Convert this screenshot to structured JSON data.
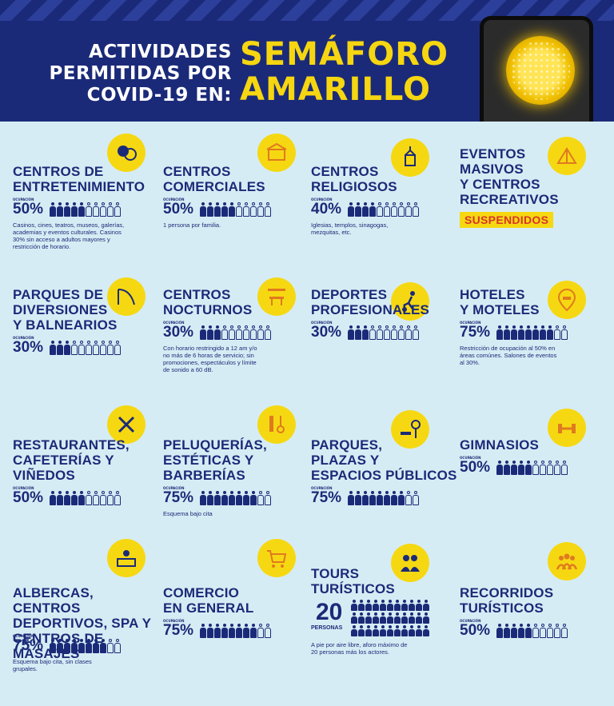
{
  "header": {
    "left_lines": [
      "ACTIVIDADES",
      "PERMITIDAS POR",
      "COVID-19 EN:"
    ],
    "right_lines": [
      "SEMÁFORO",
      "AMARILLO"
    ],
    "colors": {
      "navy": "#1b2a78",
      "yellow": "#f5d611",
      "bg": "#d6ecf4"
    }
  },
  "occupancy_label": "OCUPACIÓN",
  "cells": [
    {
      "title": "CENTROS DE\nENTRETENIMIENTO",
      "percent": "50%",
      "filled": 5,
      "note": "Casinos, cines, teatros, museos, galerías,\nacademias y eventos culturales. Casinos\n30% sin acceso a adultos mayores y\nrestricción de horario.",
      "icon": "masks-icon"
    },
    {
      "title": "CENTROS\nCOMERCIALES",
      "percent": "50%",
      "filled": 5,
      "note": "1 persona por familia.",
      "icon": "mall-icon"
    },
    {
      "title": "CENTROS\nRELIGIOSOS",
      "percent": "40%",
      "filled": 4,
      "note": "Iglesias, templos, sinagogas,\nmezquitas, etc.",
      "icon": "church-icon"
    },
    {
      "title": "EVENTOS\nMASIVOS\nY CENTROS\nRECREATIVOS",
      "status": "SUSPENDIDOS",
      "icon": "tent-icon"
    },
    {
      "title": "PARQUES DE\nDIVERSIONES\nY BALNEARIOS",
      "percent": "30%",
      "filled": 3,
      "note": "",
      "icon": "slide-icon"
    },
    {
      "title": "CENTROS\nNOCTURNOS",
      "percent": "30%",
      "filled": 3,
      "note": "Con horario restringido a 12 am y/o\nno más de 6 horas de servicio; sin\npromociones, espectáculos y límite\nde sonido a 60 dB.",
      "icon": "bar-icon"
    },
    {
      "title": "DEPORTES\nPROFESIONALES",
      "percent": "30%",
      "filled": 3,
      "note": "",
      "icon": "soccer-icon"
    },
    {
      "title": "HOTELES\nY MOTELES",
      "percent": "75%",
      "filled": 8,
      "note": "Restricción de ocupación al 50% en\náreas comúnes. Salones de eventos\nal 30%.",
      "icon": "hotel-bed-icon"
    },
    {
      "title": "RESTAURANTES,\nCAFETERÍAS Y\nVIÑEDOS",
      "percent": "50%",
      "filled": 5,
      "note": "",
      "icon": "cutlery-icon"
    },
    {
      "title": "PELUQUERÍAS,\nESTÉTICAS Y\nBARBERÍAS",
      "percent": "75%",
      "filled": 8,
      "note": "Esquema bajo cita",
      "icon": "comb-scissors-icon"
    },
    {
      "title": "PARQUES,\nPLAZAS Y\nESPACIOS PÚBLICOS",
      "percent": "75%",
      "filled": 8,
      "note": "",
      "icon": "park-bench-icon"
    },
    {
      "title": "GIMNASIOS",
      "percent": "50%",
      "filled": 5,
      "note": "",
      "icon": "dumbbell-icon"
    },
    {
      "title": "ALBERCAS, CENTROS\nDEPORTIVOS, SPA Y\nCENTROS DE MASAJES",
      "percent": "75%",
      "filled": 8,
      "note": "Esquema bajo cita, sin clases\ngrupales.",
      "icon": "spa-icon"
    },
    {
      "title": "COMERCIO\nEN GENERAL",
      "percent": "75%",
      "filled": 8,
      "note": "",
      "icon": "cart-icon"
    },
    {
      "title": "TOURS\nTURÍSTICOS",
      "count": "20",
      "count_label": "PERSONAS",
      "note": "A pie por aire libre, aforo máximo de\n20 personas más los actores.",
      "icon": "tourists-icon"
    },
    {
      "title": "RECORRIDOS\nTURÍSTICOS",
      "percent": "50%",
      "filled": 5,
      "note": "",
      "icon": "group-icon"
    }
  ]
}
